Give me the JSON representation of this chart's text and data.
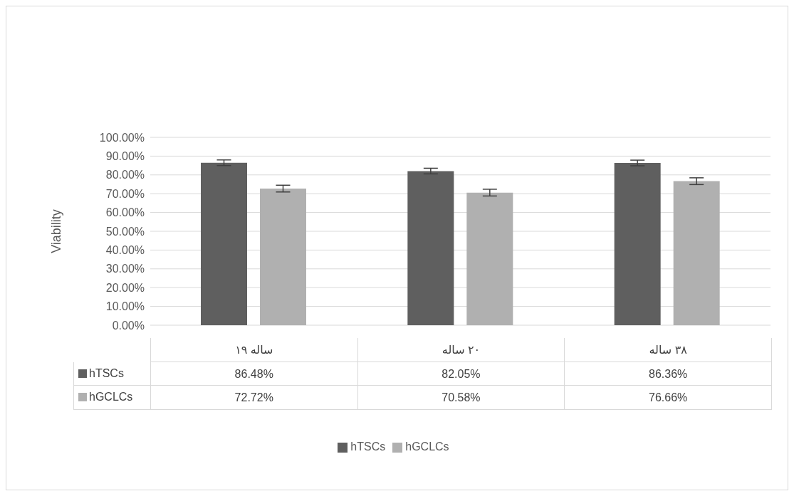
{
  "chart_data": {
    "type": "bar",
    "ylabel": "Viability",
    "categories": [
      "ساله ۱۹",
      "۲۰ ساله",
      "۳۸ ساله"
    ],
    "series": [
      {
        "name": "hTSCs",
        "color": "#5f5f5f",
        "values": [
          86.48,
          82.05,
          86.36
        ],
        "value_labels": [
          "86.48%",
          "82.05%",
          "86.36%"
        ],
        "errors": [
          1.5,
          1.5,
          1.5
        ]
      },
      {
        "name": "hGCLCs",
        "color": "#b0b0b0",
        "values": [
          72.72,
          70.58,
          76.66
        ],
        "value_labels": [
          "72.72%",
          "70.58%",
          "76.66%"
        ],
        "errors": [
          1.8,
          1.8,
          1.8
        ]
      }
    ],
    "ylim": [
      0,
      100
    ],
    "yticks": [
      {
        "value": 0,
        "label": "0.00%"
      },
      {
        "value": 10,
        "label": "10.00%"
      },
      {
        "value": 20,
        "label": "20.00%"
      },
      {
        "value": 30,
        "label": "30.00%"
      },
      {
        "value": 40,
        "label": "40.00%"
      },
      {
        "value": 50,
        "label": "50.00%"
      },
      {
        "value": 60,
        "label": "60.00%"
      },
      {
        "value": 70,
        "label": "70.00%"
      },
      {
        "value": 80,
        "label": "80.00%"
      },
      {
        "value": 90,
        "label": "90.00%"
      },
      {
        "value": 100,
        "label": "100.00%"
      }
    ],
    "grid": "y",
    "legend": "bottom"
  }
}
